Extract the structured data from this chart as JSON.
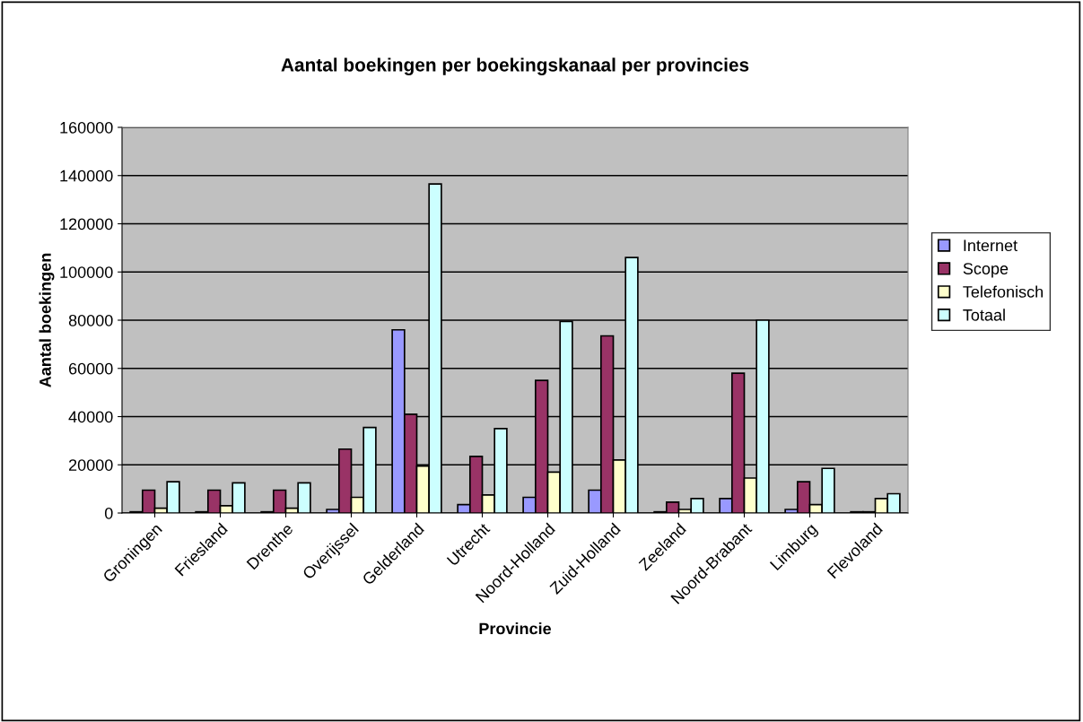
{
  "chart_data": {
    "type": "bar",
    "title": "Aantal boekingen per boekingskanaal per provincies",
    "xlabel": "Provincie",
    "ylabel": "Aantal boekingen",
    "categories": [
      "Groningen",
      "Friesland",
      "Drenthe",
      "Overijssel",
      "Gelderland",
      "Utrecht",
      "Noord-Holland",
      "Zuid-Holland",
      "Zeeland",
      "Noord-Brabant",
      "Limburg",
      "Flevoland"
    ],
    "series": [
      {
        "name": "Internet",
        "color": "#9999ff",
        "values": [
          500,
          500,
          500,
          1500,
          76000,
          3500,
          6500,
          9500,
          500,
          6000,
          1500,
          500
        ]
      },
      {
        "name": "Scope",
        "color": "#993366",
        "values": [
          9500,
          9500,
          9500,
          26500,
          41000,
          23500,
          55000,
          73500,
          4500,
          58000,
          13000,
          500
        ]
      },
      {
        "name": "Telefonisch",
        "color": "#ffffcc",
        "values": [
          2000,
          3000,
          2000,
          6500,
          19500,
          7500,
          17000,
          22000,
          1500,
          14500,
          3500,
          6000
        ]
      },
      {
        "name": "Totaal",
        "color": "#ccffff",
        "values": [
          13000,
          12500,
          12500,
          35500,
          136500,
          35000,
          79500,
          106000,
          6000,
          80000,
          18500,
          8000
        ]
      }
    ],
    "ylim": [
      0,
      160000
    ],
    "yticks": [
      0,
      20000,
      40000,
      60000,
      80000,
      100000,
      120000,
      140000,
      160000
    ],
    "grid": "y",
    "legend": "right"
  }
}
